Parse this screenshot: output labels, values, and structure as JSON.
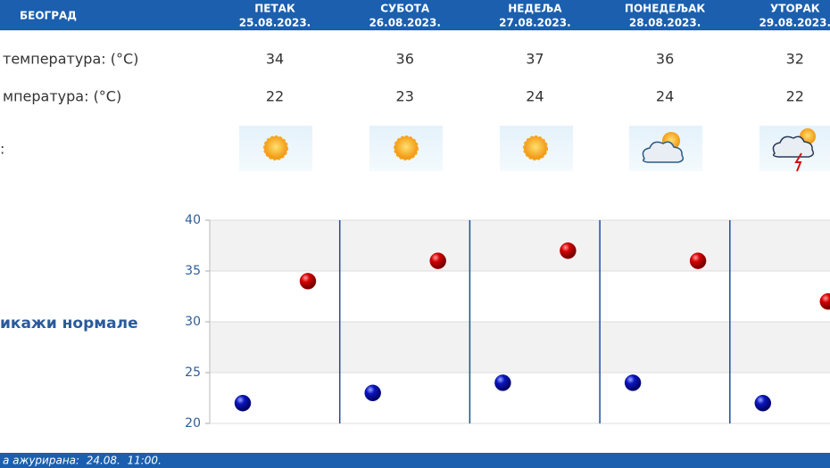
{
  "header": {
    "city": "БЕОГРАД",
    "days": [
      {
        "name": "ПЕТАК",
        "date": "25.08.2023."
      },
      {
        "name": "СУБОТА",
        "date": "26.08.2023."
      },
      {
        "name": "НЕДЕЉА",
        "date": "27.08.2023."
      },
      {
        "name": "ПОНЕДЕЉАК",
        "date": "28.08.2023."
      },
      {
        "name": "УТОРАК",
        "date": "29.08.2023."
      }
    ]
  },
  "table": {
    "rows": [
      "температура: (°C)",
      "мпература: (°C)",
      ":"
    ]
  },
  "toggle": "икажи нормале",
  "footer": "а ажурирана:  24.08.  11:00.",
  "chart_data": {
    "type": "scatter",
    "series": [
      {
        "color": "#cc0000",
        "values": [
          34,
          36,
          37,
          36,
          32
        ]
      },
      {
        "color": "#0a14b4",
        "values": [
          22,
          23,
          24,
          24,
          22
        ]
      }
    ],
    "ylim": [
      20,
      40
    ],
    "yticks": [
      20,
      25,
      30,
      35,
      40
    ],
    "grid": true
  }
}
